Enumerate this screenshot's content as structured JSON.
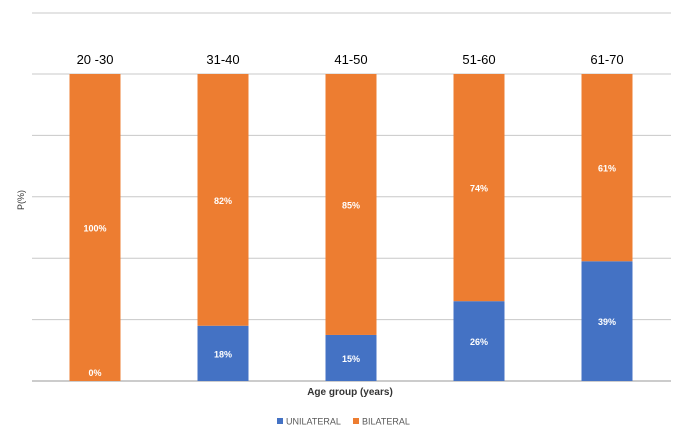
{
  "chart_data": {
    "type": "bar",
    "stacked": true,
    "normalized": true,
    "categories": [
      "20 -30",
      "31-40",
      "41-50",
      "51-60",
      "61-70"
    ],
    "series": [
      {
        "name": "UNILATERAL",
        "color": "#4472C4",
        "values": [
          0,
          18,
          15,
          26,
          39
        ],
        "labels": [
          "0%",
          "18%",
          "15%",
          "26%",
          "39%"
        ]
      },
      {
        "name": "BILATERAL",
        "color": "#ED7D31",
        "values": [
          100,
          82,
          85,
          74,
          61
        ],
        "labels": [
          "100%",
          "82%",
          "85%",
          "74%",
          "61%"
        ]
      }
    ],
    "title": "",
    "xlabel": "Age group (years)",
    "ylabel": "P(%)",
    "ylim": [
      0,
      100
    ],
    "grid": true,
    "legend_position": "bottom",
    "category_labels_position": "top"
  }
}
